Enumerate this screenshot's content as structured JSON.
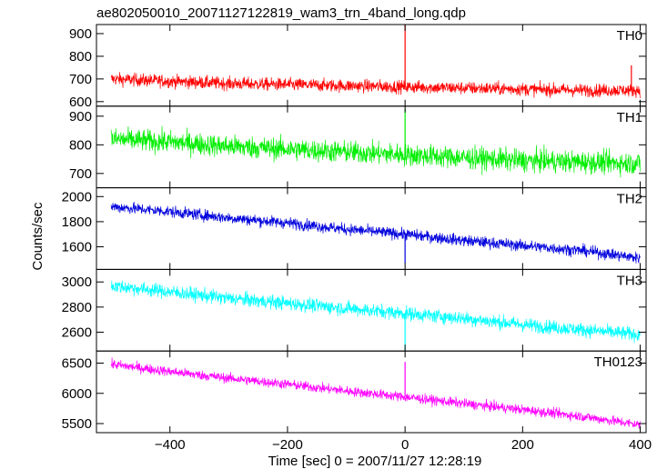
{
  "chart_data": {
    "type": "line",
    "title": "ae802050010_20071127122819_wam3_trn_4band_long.qdp",
    "xlabel": "Time [sec] 0 = 2007/11/27 12:28:19",
    "ylabel": "Counts/sec",
    "xlim": [
      -525,
      410
    ],
    "x_ticks": [
      -400,
      -200,
      0,
      200,
      400
    ],
    "panels": [
      {
        "name": "TH0",
        "color": "#ff0000",
        "ylim": [
          580,
          940
        ],
        "y_ticks": [
          600,
          700,
          800,
          900
        ],
        "x": [
          -500,
          -400,
          -300,
          -200,
          -100,
          0,
          100,
          200,
          300,
          400
        ],
        "y": [
          700,
          690,
          680,
          675,
          670,
          665,
          660,
          655,
          650,
          650
        ],
        "noise": 28,
        "spikes": [
          {
            "x": 0,
            "y": 940
          },
          {
            "x": 385,
            "y": 760
          }
        ]
      },
      {
        "name": "TH1",
        "color": "#00ee00",
        "ylim": [
          650,
          935
        ],
        "y_ticks": [
          700,
          800,
          900
        ],
        "x": [
          -500,
          -400,
          -300,
          -200,
          -100,
          0,
          100,
          200,
          300,
          400
        ],
        "y": [
          820,
          810,
          795,
          785,
          775,
          765,
          755,
          745,
          740,
          735
        ],
        "noise": 38,
        "spikes": [
          {
            "x": 0,
            "y": 925
          }
        ]
      },
      {
        "name": "TH2",
        "color": "#0000dd",
        "ylim": [
          1420,
          2070
        ],
        "y_ticks": [
          1600,
          1800,
          2000
        ],
        "x": [
          -500,
          -400,
          -300,
          -200,
          -100,
          0,
          100,
          200,
          300,
          400
        ],
        "y": [
          1920,
          1880,
          1830,
          1790,
          1740,
          1700,
          1650,
          1610,
          1570,
          1510
        ],
        "noise": 45,
        "spikes": [
          {
            "x": 0,
            "y": 1470
          }
        ]
      },
      {
        "name": "TH3",
        "color": "#00ffff",
        "ylim": [
          2450,
          3100
        ],
        "y_ticks": [
          2600,
          2800,
          3000
        ],
        "x": [
          -500,
          -400,
          -300,
          -200,
          -100,
          0,
          100,
          200,
          300,
          400
        ],
        "y": [
          2970,
          2920,
          2870,
          2830,
          2790,
          2750,
          2710,
          2660,
          2620,
          2580
        ],
        "noise": 55,
        "spikes": [
          {
            "x": 0,
            "y": 2450
          }
        ]
      },
      {
        "name": "TH0123",
        "color": "#ff00ff",
        "ylim": [
          5350,
          6700
        ],
        "y_ticks": [
          5500,
          6000,
          6500
        ],
        "x": [
          -500,
          -400,
          -300,
          -200,
          -100,
          0,
          100,
          200,
          300,
          400
        ],
        "y": [
          6480,
          6360,
          6250,
          6150,
          6040,
          5940,
          5830,
          5730,
          5620,
          5480
        ],
        "noise": 80,
        "spikes": [
          {
            "x": 0,
            "y": 6520
          }
        ]
      }
    ]
  }
}
